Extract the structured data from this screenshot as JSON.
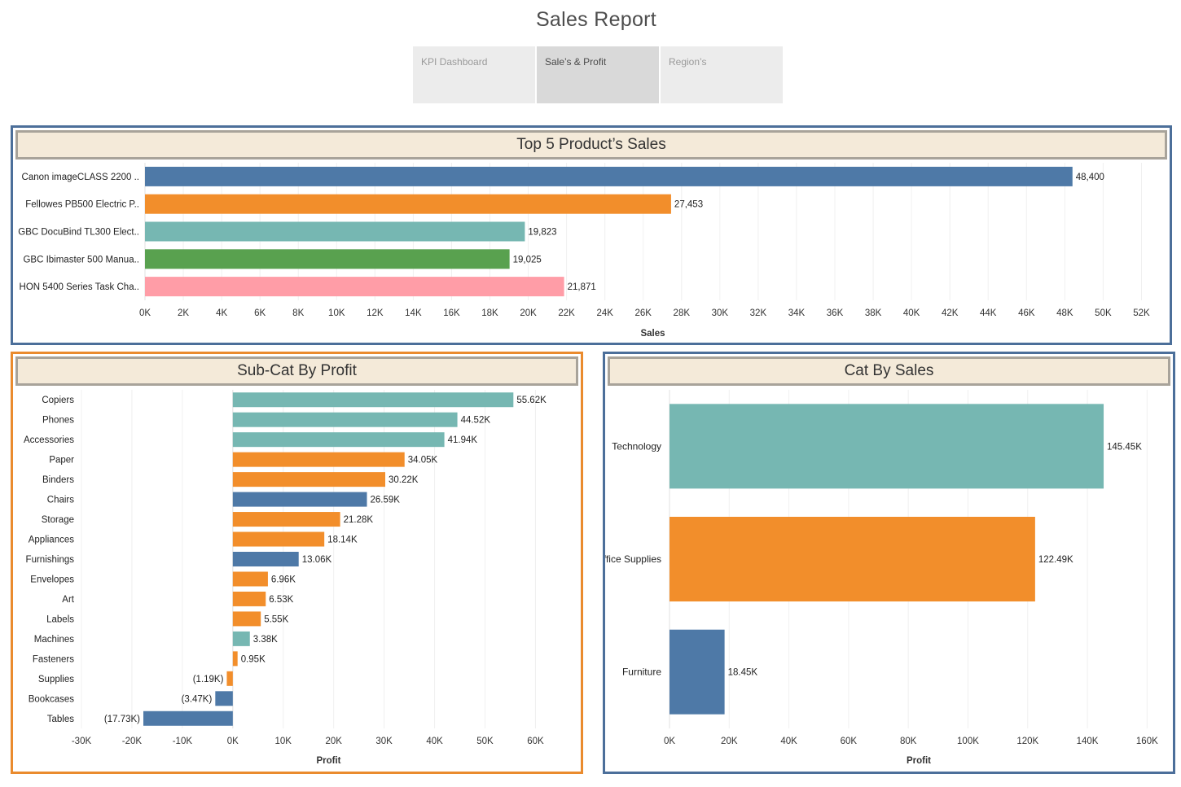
{
  "report": {
    "title": "Sales Report"
  },
  "tabs": [
    {
      "label": "KPI Dashboard",
      "active": false
    },
    {
      "label": "Sale’s & Profit",
      "active": true
    },
    {
      "label": "Region’s",
      "active": false
    }
  ],
  "colors": {
    "blue": "#4e79a7",
    "orange": "#f28e2b",
    "teal": "#76b7b2",
    "green": "#59a14f",
    "pink": "#ff9da7"
  },
  "chart_data": [
    {
      "type": "bar",
      "orientation": "horizontal",
      "title": "Top 5 Product’s Sales",
      "categories": [
        "Canon imageCLASS 2200 ..",
        "Fellowes PB500 Electric P..",
        "GBC DocuBind TL300 Elect..",
        "GBC Ibimaster 500 Manua..",
        "HON 5400 Series Task Cha.."
      ],
      "values": [
        48400,
        27453,
        19823,
        19025,
        21871
      ],
      "value_labels": [
        "48,400",
        "27,453",
        "19,823",
        "19,025",
        "21,871"
      ],
      "bar_colors": [
        "#4e79a7",
        "#f28e2b",
        "#76b7b2",
        "#59a14f",
        "#ff9da7"
      ],
      "xlabel": "Sales",
      "xlim": [
        0,
        53000
      ],
      "ticks": [
        0,
        2000,
        4000,
        6000,
        8000,
        10000,
        12000,
        14000,
        16000,
        18000,
        20000,
        22000,
        24000,
        26000,
        28000,
        30000,
        32000,
        34000,
        36000,
        38000,
        40000,
        42000,
        44000,
        46000,
        48000,
        50000,
        52000
      ],
      "tick_labels": [
        "0K",
        "2K",
        "4K",
        "6K",
        "8K",
        "10K",
        "12K",
        "14K",
        "16K",
        "18K",
        "20K",
        "22K",
        "24K",
        "26K",
        "28K",
        "30K",
        "32K",
        "34K",
        "36K",
        "38K",
        "40K",
        "42K",
        "44K",
        "46K",
        "48K",
        "50K",
        "52K"
      ],
      "grid": true
    },
    {
      "type": "bar",
      "orientation": "horizontal",
      "title": "Sub-Cat By Profit",
      "categories": [
        "Copiers",
        "Phones",
        "Accessories",
        "Paper",
        "Binders",
        "Chairs",
        "Storage",
        "Appliances",
        "Furnishings",
        "Envelopes",
        "Art",
        "Labels",
        "Machines",
        "Fasteners",
        "Supplies",
        "Bookcases",
        "Tables"
      ],
      "values": [
        55620,
        44520,
        41940,
        34050,
        30220,
        26590,
        21280,
        18140,
        13060,
        6960,
        6530,
        5550,
        3380,
        950,
        -1190,
        -3470,
        -17730
      ],
      "value_labels": [
        "55.62K",
        "44.52K",
        "41.94K",
        "34.05K",
        "30.22K",
        "26.59K",
        "21.28K",
        "18.14K",
        "13.06K",
        "6.96K",
        "6.53K",
        "5.55K",
        "3.38K",
        "0.95K",
        "(1.19K)",
        "(3.47K)",
        "(17.73K)"
      ],
      "bar_colors": [
        "#76b7b2",
        "#76b7b2",
        "#76b7b2",
        "#f28e2b",
        "#f28e2b",
        "#4e79a7",
        "#f28e2b",
        "#f28e2b",
        "#4e79a7",
        "#f28e2b",
        "#f28e2b",
        "#f28e2b",
        "#76b7b2",
        "#f28e2b",
        "#f28e2b",
        "#4e79a7",
        "#4e79a7"
      ],
      "xlabel": "Profit",
      "xlim": [
        -30000,
        68000
      ],
      "ticks": [
        -30000,
        -20000,
        -10000,
        0,
        10000,
        20000,
        30000,
        40000,
        50000,
        60000
      ],
      "tick_labels": [
        "-30K",
        "-20K",
        "-10K",
        "0K",
        "10K",
        "20K",
        "30K",
        "40K",
        "50K",
        "60K"
      ],
      "grid": true
    },
    {
      "type": "bar",
      "orientation": "horizontal",
      "title": "Cat By Sales",
      "categories": [
        "Technology",
        "Office Supplies",
        "Furniture"
      ],
      "values": [
        145450,
        122490,
        18450
      ],
      "value_labels": [
        "145.45K",
        "122.49K",
        "18.45K"
      ],
      "bar_colors": [
        "#76b7b2",
        "#f28e2b",
        "#4e79a7"
      ],
      "xlabel": "Profit",
      "xlim": [
        0,
        167000
      ],
      "ticks": [
        0,
        20000,
        40000,
        60000,
        80000,
        100000,
        120000,
        140000,
        160000
      ],
      "tick_labels": [
        "0K",
        "20K",
        "40K",
        "60K",
        "80K",
        "100K",
        "120K",
        "140K",
        "160K"
      ],
      "grid": true
    }
  ]
}
